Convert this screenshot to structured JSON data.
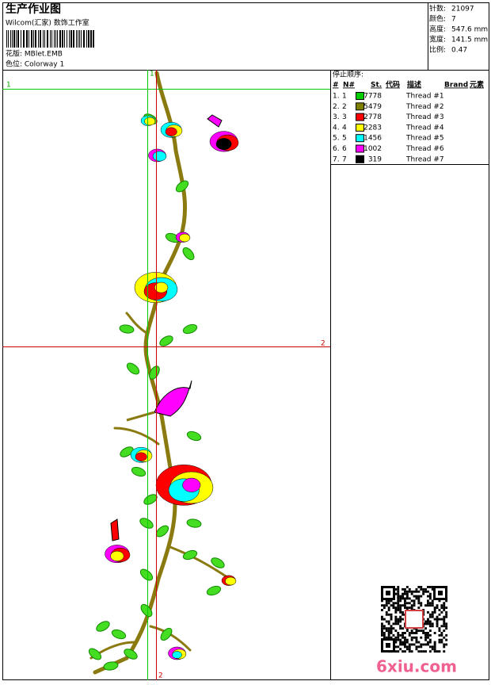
{
  "header": {
    "title": "生产作业图",
    "subtitle": "Wilcom(汇家) 数饰工作室",
    "design": "花版:  MBlet.EMB",
    "colorway": "色位:  Colorway 1"
  },
  "stats": [
    {
      "label": "针数:",
      "value": "21097"
    },
    {
      "label": "颜色:",
      "value": "7"
    },
    {
      "label": "高度:",
      "value": "547.6 mm"
    },
    {
      "label": "宽度:",
      "value": "141.5 mm"
    },
    {
      "label": "比例:",
      "value": "0.47"
    }
  ],
  "table": {
    "title": "停止顺序:",
    "headers": [
      "#",
      "N#",
      "St.",
      "代码",
      "描述",
      "Brand",
      "元素"
    ],
    "rows": [
      {
        "stop": "1.",
        "needle": "1",
        "color": "#00cc00",
        "code": "7778",
        "description": "Thread #1"
      },
      {
        "stop": "2.",
        "needle": "2",
        "color": "#7f7f00",
        "code": "5479",
        "description": "Thread #2"
      },
      {
        "stop": "3.",
        "needle": "3",
        "color": "#ff0000",
        "code": "2778",
        "description": "Thread #3"
      },
      {
        "stop": "4.",
        "needle": "4",
        "color": "#ffff00",
        "code": "2283",
        "description": "Thread #4"
      },
      {
        "stop": "5.",
        "needle": "5",
        "color": "#00ffff",
        "code": "1456",
        "description": "Thread #5"
      },
      {
        "stop": "6.",
        "needle": "6",
        "color": "#ff00ff",
        "code": "1002",
        "description": "Thread #6"
      },
      {
        "stop": "7.",
        "needle": "7",
        "color": "#000000",
        "code": "319",
        "description": "Thread #7"
      }
    ]
  },
  "guides": {
    "green_h": "1",
    "green_v": "1",
    "red_h": "2",
    "red_v": "2"
  },
  "watermark": "6xiu.com"
}
